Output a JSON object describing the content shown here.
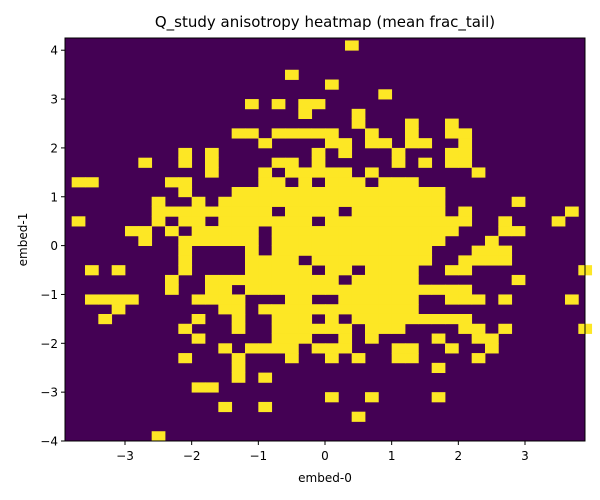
{
  "chart_data": {
    "type": "heatmap",
    "title": "Q_study anisotropy heatmap (mean frac_tail)",
    "xlabel": "embed-0",
    "ylabel": "embed-1",
    "xlim": [
      -3.9,
      3.9
    ],
    "ylim": [
      -4.0,
      4.25
    ],
    "xticks": [
      -3,
      -2,
      -1,
      0,
      1,
      2,
      3
    ],
    "yticks": [
      -4,
      -3,
      -2,
      -1,
      0,
      1,
      2,
      3,
      4
    ],
    "grid": false,
    "bin_size": 0.2,
    "background_value": 0,
    "background_color": "#440154",
    "high_color": "#fde725",
    "cells": [
      [
        0.4,
        4.1
      ],
      [
        -0.5,
        3.5
      ],
      [
        0.1,
        3.3
      ],
      [
        0.9,
        3.1
      ],
      [
        -1.1,
        2.9
      ],
      [
        -0.7,
        2.9
      ],
      [
        -0.3,
        2.9
      ],
      [
        -0.1,
        2.9
      ],
      [
        -0.3,
        2.7
      ],
      [
        0.5,
        2.7
      ],
      [
        0.5,
        2.5
      ],
      [
        1.3,
        2.5
      ],
      [
        1.9,
        2.5
      ],
      [
        -1.3,
        2.3
      ],
      [
        -1.1,
        2.3
      ],
      [
        -0.7,
        2.3
      ],
      [
        -0.5,
        2.3
      ],
      [
        -0.3,
        2.3
      ],
      [
        -0.1,
        2.3
      ],
      [
        0.1,
        2.3
      ],
      [
        0.7,
        2.3
      ],
      [
        1.3,
        2.3
      ],
      [
        1.9,
        2.3
      ],
      [
        2.1,
        2.3
      ],
      [
        -0.9,
        2.1
      ],
      [
        0.1,
        2.1
      ],
      [
        0.3,
        2.1
      ],
      [
        0.7,
        2.1
      ],
      [
        0.9,
        2.1
      ],
      [
        1.3,
        2.1
      ],
      [
        1.5,
        2.1
      ],
      [
        2.1,
        2.1
      ],
      [
        -2.1,
        1.9
      ],
      [
        -1.7,
        1.9
      ],
      [
        -0.1,
        1.9
      ],
      [
        0.3,
        1.9
      ],
      [
        1.1,
        1.9
      ],
      [
        1.9,
        1.9
      ],
      [
        2.1,
        1.9
      ],
      [
        -2.7,
        1.7
      ],
      [
        -2.1,
        1.7
      ],
      [
        -1.7,
        1.7
      ],
      [
        -0.7,
        1.7
      ],
      [
        -0.5,
        1.7
      ],
      [
        -0.1,
        1.7
      ],
      [
        1.1,
        1.7
      ],
      [
        1.5,
        1.7
      ],
      [
        1.9,
        1.7
      ],
      [
        2.1,
        1.7
      ],
      [
        -1.7,
        1.5
      ],
      [
        -0.9,
        1.5
      ],
      [
        -0.5,
        1.5
      ],
      [
        -0.3,
        1.5
      ],
      [
        -0.1,
        1.5
      ],
      [
        0.1,
        1.5
      ],
      [
        0.3,
        1.5
      ],
      [
        0.7,
        1.5
      ],
      [
        2.3,
        1.5
      ],
      [
        -3.7,
        1.3
      ],
      [
        -3.5,
        1.3
      ],
      [
        -2.3,
        1.3
      ],
      [
        -2.1,
        1.3
      ],
      [
        -0.9,
        1.3
      ],
      [
        -0.7,
        1.3
      ],
      [
        -0.3,
        1.3
      ],
      [
        0.1,
        1.3
      ],
      [
        0.3,
        1.3
      ],
      [
        0.5,
        1.3
      ],
      [
        0.9,
        1.3
      ],
      [
        1.1,
        1.3
      ],
      [
        1.3,
        1.3
      ],
      [
        -2.1,
        1.1
      ],
      [
        -1.3,
        1.1
      ],
      [
        -1.1,
        1.1
      ],
      [
        -0.9,
        1.1
      ],
      [
        -0.7,
        1.1
      ],
      [
        -0.5,
        1.1
      ],
      [
        -0.3,
        1.1
      ],
      [
        -0.1,
        1.1
      ],
      [
        0.1,
        1.1
      ],
      [
        0.3,
        1.1
      ],
      [
        0.5,
        1.1
      ],
      [
        0.7,
        1.1
      ],
      [
        0.9,
        1.1
      ],
      [
        1.1,
        1.1
      ],
      [
        1.3,
        1.1
      ],
      [
        1.5,
        1.1
      ],
      [
        1.7,
        1.1
      ],
      [
        -2.5,
        0.9
      ],
      [
        -1.9,
        0.9
      ],
      [
        -1.5,
        0.9
      ],
      [
        -1.3,
        0.9
      ],
      [
        -1.1,
        0.9
      ],
      [
        -0.9,
        0.9
      ],
      [
        -0.7,
        0.9
      ],
      [
        -0.5,
        0.9
      ],
      [
        -0.3,
        0.9
      ],
      [
        -0.1,
        0.9
      ],
      [
        0.1,
        0.9
      ],
      [
        0.3,
        0.9
      ],
      [
        0.5,
        0.9
      ],
      [
        0.7,
        0.9
      ],
      [
        0.9,
        0.9
      ],
      [
        1.1,
        0.9
      ],
      [
        1.3,
        0.9
      ],
      [
        1.5,
        0.9
      ],
      [
        1.7,
        0.9
      ],
      [
        2.9,
        0.9
      ],
      [
        -2.5,
        0.7
      ],
      [
        -2.3,
        0.7
      ],
      [
        -2.1,
        0.7
      ],
      [
        -1.9,
        0.7
      ],
      [
        -1.7,
        0.7
      ],
      [
        -1.5,
        0.7
      ],
      [
        -1.3,
        0.7
      ],
      [
        -1.1,
        0.7
      ],
      [
        -0.9,
        0.7
      ],
      [
        -0.5,
        0.7
      ],
      [
        -0.3,
        0.7
      ],
      [
        -0.1,
        0.7
      ],
      [
        0.1,
        0.7
      ],
      [
        0.5,
        0.7
      ],
      [
        0.7,
        0.7
      ],
      [
        0.9,
        0.7
      ],
      [
        1.1,
        0.7
      ],
      [
        1.3,
        0.7
      ],
      [
        1.5,
        0.7
      ],
      [
        1.7,
        0.7
      ],
      [
        2.1,
        0.7
      ],
      [
        3.7,
        0.7
      ],
      [
        -3.7,
        0.5
      ],
      [
        -2.5,
        0.5
      ],
      [
        -2.1,
        0.5
      ],
      [
        -1.9,
        0.5
      ],
      [
        -1.5,
        0.5
      ],
      [
        -1.3,
        0.5
      ],
      [
        -1.1,
        0.5
      ],
      [
        -0.9,
        0.5
      ],
      [
        -0.7,
        0.5
      ],
      [
        -0.5,
        0.5
      ],
      [
        -0.3,
        0.5
      ],
      [
        0.1,
        0.5
      ],
      [
        0.3,
        0.5
      ],
      [
        0.5,
        0.5
      ],
      [
        0.7,
        0.5
      ],
      [
        0.9,
        0.5
      ],
      [
        1.1,
        0.5
      ],
      [
        1.3,
        0.5
      ],
      [
        1.5,
        0.5
      ],
      [
        1.7,
        0.5
      ],
      [
        1.9,
        0.5
      ],
      [
        2.1,
        0.5
      ],
      [
        2.7,
        0.5
      ],
      [
        3.5,
        0.5
      ],
      [
        -2.9,
        0.3
      ],
      [
        -2.7,
        0.3
      ],
      [
        -2.3,
        0.3
      ],
      [
        -1.9,
        0.3
      ],
      [
        -1.7,
        0.3
      ],
      [
        -1.5,
        0.3
      ],
      [
        -1.3,
        0.3
      ],
      [
        -1.1,
        0.3
      ],
      [
        -0.7,
        0.3
      ],
      [
        -0.5,
        0.3
      ],
      [
        -0.3,
        0.3
      ],
      [
        -0.1,
        0.3
      ],
      [
        0.1,
        0.3
      ],
      [
        0.3,
        0.3
      ],
      [
        0.5,
        0.3
      ],
      [
        0.7,
        0.3
      ],
      [
        0.9,
        0.3
      ],
      [
        1.1,
        0.3
      ],
      [
        1.3,
        0.3
      ],
      [
        1.5,
        0.3
      ],
      [
        1.7,
        0.3
      ],
      [
        1.9,
        0.3
      ],
      [
        2.7,
        0.3
      ],
      [
        2.9,
        0.3
      ],
      [
        -2.7,
        0.1
      ],
      [
        -2.1,
        0.1
      ],
      [
        -1.9,
        0.1
      ],
      [
        -1.7,
        0.1
      ],
      [
        -1.5,
        0.1
      ],
      [
        -1.3,
        0.1
      ],
      [
        -1.1,
        0.1
      ],
      [
        -0.7,
        0.1
      ],
      [
        -0.5,
        0.1
      ],
      [
        -0.3,
        0.1
      ],
      [
        -0.1,
        0.1
      ],
      [
        0.1,
        0.1
      ],
      [
        0.3,
        0.1
      ],
      [
        0.5,
        0.1
      ],
      [
        0.7,
        0.1
      ],
      [
        0.9,
        0.1
      ],
      [
        1.1,
        0.1
      ],
      [
        1.3,
        0.1
      ],
      [
        1.5,
        0.1
      ],
      [
        1.7,
        0.1
      ],
      [
        2.5,
        0.1
      ],
      [
        -2.1,
        -0.1
      ],
      [
        -1.1,
        -0.1
      ],
      [
        -0.7,
        -0.1
      ],
      [
        -0.5,
        -0.1
      ],
      [
        -0.3,
        -0.1
      ],
      [
        -0.1,
        -0.1
      ],
      [
        0.1,
        -0.1
      ],
      [
        0.3,
        -0.1
      ],
      [
        0.5,
        -0.1
      ],
      [
        0.7,
        -0.1
      ],
      [
        0.9,
        -0.1
      ],
      [
        1.1,
        -0.1
      ],
      [
        1.3,
        -0.1
      ],
      [
        1.5,
        -0.1
      ],
      [
        2.3,
        -0.1
      ],
      [
        2.5,
        -0.1
      ],
      [
        2.7,
        -0.1
      ],
      [
        -2.1,
        -0.3
      ],
      [
        -1.1,
        -0.3
      ],
      [
        -0.9,
        -0.3
      ],
      [
        -0.7,
        -0.3
      ],
      [
        -0.5,
        -0.3
      ],
      [
        -0.1,
        -0.3
      ],
      [
        0.1,
        -0.3
      ],
      [
        0.3,
        -0.3
      ],
      [
        0.5,
        -0.3
      ],
      [
        0.7,
        -0.3
      ],
      [
        0.9,
        -0.3
      ],
      [
        1.1,
        -0.3
      ],
      [
        1.3,
        -0.3
      ],
      [
        1.5,
        -0.3
      ],
      [
        2.1,
        -0.3
      ],
      [
        2.3,
        -0.3
      ],
      [
        2.5,
        -0.3
      ],
      [
        2.7,
        -0.3
      ],
      [
        -3.5,
        -0.5
      ],
      [
        -3.1,
        -0.5
      ],
      [
        -2.1,
        -0.5
      ],
      [
        -1.1,
        -0.5
      ],
      [
        -0.9,
        -0.5
      ],
      [
        -0.7,
        -0.5
      ],
      [
        -0.5,
        -0.5
      ],
      [
        -0.3,
        -0.5
      ],
      [
        0.1,
        -0.5
      ],
      [
        0.3,
        -0.5
      ],
      [
        0.7,
        -0.5
      ],
      [
        0.9,
        -0.5
      ],
      [
        1.1,
        -0.5
      ],
      [
        1.3,
        -0.5
      ],
      [
        1.9,
        -0.5
      ],
      [
        2.1,
        -0.5
      ],
      [
        3.9,
        -0.5
      ],
      [
        -2.3,
        -0.7
      ],
      [
        -1.7,
        -0.7
      ],
      [
        -1.5,
        -0.7
      ],
      [
        -1.3,
        -0.7
      ],
      [
        -1.1,
        -0.7
      ],
      [
        -0.9,
        -0.7
      ],
      [
        -0.7,
        -0.7
      ],
      [
        -0.5,
        -0.7
      ],
      [
        -0.3,
        -0.7
      ],
      [
        -0.1,
        -0.7
      ],
      [
        0.1,
        -0.7
      ],
      [
        0.5,
        -0.7
      ],
      [
        0.7,
        -0.7
      ],
      [
        0.9,
        -0.7
      ],
      [
        1.1,
        -0.7
      ],
      [
        1.3,
        -0.7
      ],
      [
        2.9,
        -0.7
      ],
      [
        -2.3,
        -0.9
      ],
      [
        -1.7,
        -0.9
      ],
      [
        -1.5,
        -0.9
      ],
      [
        -1.1,
        -0.9
      ],
      [
        -0.9,
        -0.9
      ],
      [
        -0.7,
        -0.9
      ],
      [
        -0.5,
        -0.9
      ],
      [
        -0.3,
        -0.9
      ],
      [
        -0.1,
        -0.9
      ],
      [
        0.1,
        -0.9
      ],
      [
        0.3,
        -0.9
      ],
      [
        0.5,
        -0.9
      ],
      [
        0.7,
        -0.9
      ],
      [
        0.9,
        -0.9
      ],
      [
        1.1,
        -0.9
      ],
      [
        1.3,
        -0.9
      ],
      [
        1.5,
        -0.9
      ],
      [
        1.7,
        -0.9
      ],
      [
        1.9,
        -0.9
      ],
      [
        2.1,
        -0.9
      ],
      [
        -3.5,
        -1.1
      ],
      [
        -3.3,
        -1.1
      ],
      [
        -3.1,
        -1.1
      ],
      [
        -2.9,
        -1.1
      ],
      [
        -1.9,
        -1.1
      ],
      [
        -1.7,
        -1.1
      ],
      [
        -1.5,
        -1.1
      ],
      [
        -1.3,
        -1.1
      ],
      [
        -0.5,
        -1.1
      ],
      [
        -0.3,
        -1.1
      ],
      [
        0.3,
        -1.1
      ],
      [
        0.5,
        -1.1
      ],
      [
        0.7,
        -1.1
      ],
      [
        0.9,
        -1.1
      ],
      [
        1.1,
        -1.1
      ],
      [
        1.3,
        -1.1
      ],
      [
        1.9,
        -1.1
      ],
      [
        2.1,
        -1.1
      ],
      [
        2.3,
        -1.1
      ],
      [
        2.7,
        -1.1
      ],
      [
        3.7,
        -1.1
      ],
      [
        -3.1,
        -1.3
      ],
      [
        -1.5,
        -1.3
      ],
      [
        -1.3,
        -1.3
      ],
      [
        -0.9,
        -1.3
      ],
      [
        -0.7,
        -1.3
      ],
      [
        -0.5,
        -1.3
      ],
      [
        -0.3,
        -1.3
      ],
      [
        -0.1,
        -1.3
      ],
      [
        0.1,
        -1.3
      ],
      [
        0.3,
        -1.3
      ],
      [
        0.5,
        -1.3
      ],
      [
        0.7,
        -1.3
      ],
      [
        0.9,
        -1.3
      ],
      [
        1.1,
        -1.3
      ],
      [
        1.3,
        -1.3
      ],
      [
        -3.3,
        -1.5
      ],
      [
        -1.9,
        -1.5
      ],
      [
        -1.3,
        -1.5
      ],
      [
        -0.7,
        -1.5
      ],
      [
        -0.5,
        -1.5
      ],
      [
        -0.3,
        -1.5
      ],
      [
        0.1,
        -1.5
      ],
      [
        0.5,
        -1.5
      ],
      [
        0.7,
        -1.5
      ],
      [
        0.9,
        -1.5
      ],
      [
        1.1,
        -1.5
      ],
      [
        1.3,
        -1.5
      ],
      [
        1.5,
        -1.5
      ],
      [
        1.7,
        -1.5
      ],
      [
        1.9,
        -1.5
      ],
      [
        2.1,
        -1.5
      ],
      [
        -2.1,
        -1.7
      ],
      [
        -1.3,
        -1.7
      ],
      [
        -0.7,
        -1.7
      ],
      [
        -0.5,
        -1.7
      ],
      [
        -0.3,
        -1.7
      ],
      [
        -0.1,
        -1.7
      ],
      [
        0.1,
        -1.7
      ],
      [
        0.3,
        -1.7
      ],
      [
        0.7,
        -1.7
      ],
      [
        0.9,
        -1.7
      ],
      [
        1.1,
        -1.7
      ],
      [
        2.1,
        -1.7
      ],
      [
        2.3,
        -1.7
      ],
      [
        2.7,
        -1.7
      ],
      [
        3.9,
        -1.7
      ],
      [
        -1.9,
        -1.9
      ],
      [
        -0.7,
        -1.9
      ],
      [
        -0.5,
        -1.9
      ],
      [
        -0.3,
        -1.9
      ],
      [
        0.3,
        -1.9
      ],
      [
        0.7,
        -1.9
      ],
      [
        1.7,
        -1.9
      ],
      [
        2.3,
        -1.9
      ],
      [
        2.5,
        -1.9
      ],
      [
        -1.5,
        -2.1
      ],
      [
        -1.1,
        -2.1
      ],
      [
        -0.9,
        -2.1
      ],
      [
        -0.7,
        -2.1
      ],
      [
        -0.5,
        -2.1
      ],
      [
        -0.1,
        -2.1
      ],
      [
        0.1,
        -2.1
      ],
      [
        0.3,
        -2.1
      ],
      [
        1.1,
        -2.1
      ],
      [
        1.3,
        -2.1
      ],
      [
        1.9,
        -2.1
      ],
      [
        2.5,
        -2.1
      ],
      [
        -2.1,
        -2.3
      ],
      [
        -1.3,
        -2.3
      ],
      [
        -0.5,
        -2.3
      ],
      [
        0.1,
        -2.3
      ],
      [
        0.5,
        -2.3
      ],
      [
        1.1,
        -2.3
      ],
      [
        1.3,
        -2.3
      ],
      [
        2.3,
        -2.3
      ],
      [
        -1.3,
        -2.5
      ],
      [
        1.7,
        -2.5
      ],
      [
        -1.3,
        -2.7
      ],
      [
        -0.9,
        -2.7
      ],
      [
        -1.9,
        -2.9
      ],
      [
        -1.7,
        -2.9
      ],
      [
        0.1,
        -3.1
      ],
      [
        0.7,
        -3.1
      ],
      [
        1.7,
        -3.1
      ],
      [
        -1.5,
        -3.3
      ],
      [
        -0.9,
        -3.3
      ],
      [
        0.5,
        -3.5
      ],
      [
        -2.5,
        -3.9
      ]
    ]
  }
}
